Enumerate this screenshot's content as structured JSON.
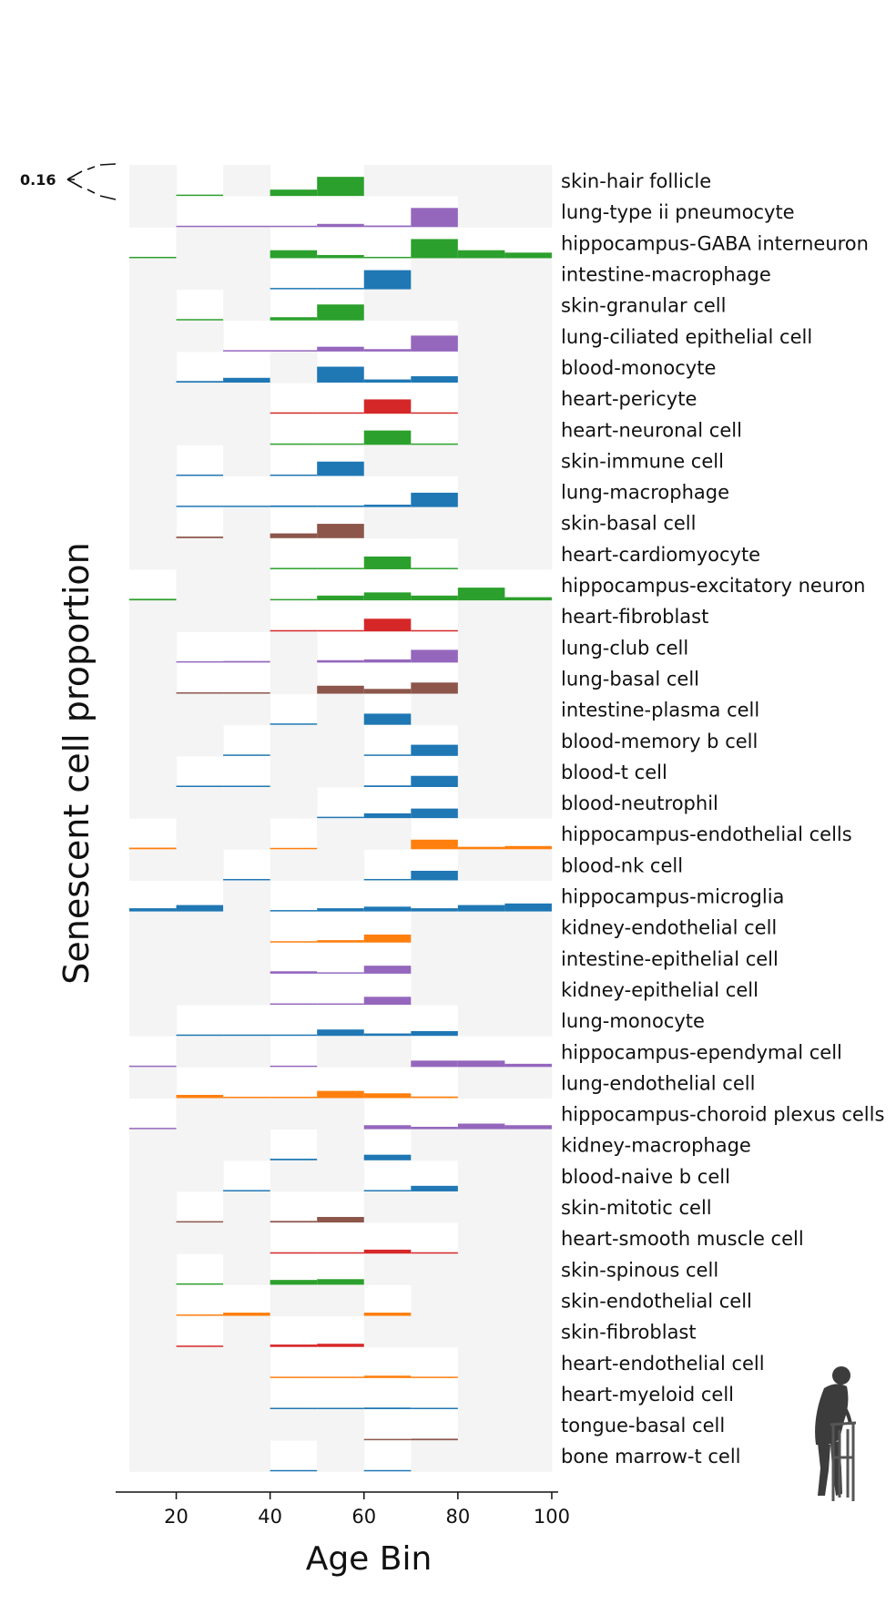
{
  "chart_data": {
    "type": "ridgeline-histogram",
    "xlabel": "Age Bin",
    "ylabel": "Senescent cell proportion",
    "xlim": [
      10,
      100
    ],
    "xticks": [
      20,
      40,
      60,
      80,
      100
    ],
    "bins": [
      10,
      20,
      30,
      40,
      50,
      60,
      70,
      80,
      90
    ],
    "bin_width": 10,
    "scale_label": "0.16",
    "scale_value": 0.16,
    "colors": {
      "green": "#2ca02c",
      "purple": "#9467bd",
      "blue": "#1f77b4",
      "red": "#d62728",
      "brown": "#8c564b",
      "orange": "#ff7f0e",
      "missing_bin": "#f4f4f4"
    },
    "series": [
      {
        "name": "skin-hair follicle",
        "color": "green",
        "values": [
          null,
          0.003,
          null,
          0.04,
          0.12,
          null,
          null,
          null,
          null
        ]
      },
      {
        "name": "lung-type ii pneumocyte",
        "color": "purple",
        "values": [
          null,
          0.003,
          0.005,
          0.007,
          0.02,
          0.01,
          0.12,
          null,
          null
        ]
      },
      {
        "name": "hippocampus-GABA interneuron",
        "color": "green",
        "values": [
          0.003,
          null,
          null,
          0.05,
          0.02,
          0.005,
          0.12,
          0.05,
          0.035
        ]
      },
      {
        "name": "intestine-macrophage",
        "color": "blue",
        "values": [
          null,
          null,
          null,
          0.003,
          0.003,
          0.12,
          null,
          null,
          null
        ]
      },
      {
        "name": "skin-granular cell",
        "color": "green",
        "values": [
          null,
          0.008,
          null,
          0.02,
          0.1,
          null,
          null,
          null,
          null
        ]
      },
      {
        "name": "lung-ciliated epithelial cell",
        "color": "purple",
        "values": [
          null,
          null,
          0.005,
          0.005,
          0.03,
          0.015,
          0.1,
          null,
          null
        ]
      },
      {
        "name": "blood-monocyte",
        "color": "blue",
        "values": [
          null,
          0.01,
          0.03,
          null,
          0.1,
          0.02,
          0.04,
          null,
          null
        ]
      },
      {
        "name": "heart-pericyte",
        "color": "red",
        "values": [
          null,
          null,
          null,
          0.003,
          0.005,
          0.09,
          0.003,
          null,
          null
        ]
      },
      {
        "name": "heart-neuronal cell",
        "color": "green",
        "values": [
          null,
          null,
          null,
          0.003,
          0.003,
          0.09,
          0.003,
          null,
          null
        ]
      },
      {
        "name": "skin-immune cell",
        "color": "blue",
        "values": [
          null,
          0.003,
          null,
          0.005,
          0.09,
          null,
          null,
          null,
          null
        ]
      },
      {
        "name": "lung-macrophage",
        "color": "blue",
        "values": [
          null,
          0.003,
          0.005,
          0.01,
          0.01,
          0.015,
          0.09,
          null,
          null
        ]
      },
      {
        "name": "skin-basal cell",
        "color": "brown",
        "values": [
          null,
          0.01,
          null,
          0.03,
          0.09,
          null,
          null,
          null,
          null
        ]
      },
      {
        "name": "heart-cardiomyocyte",
        "color": "green",
        "values": [
          null,
          null,
          null,
          0.003,
          0.003,
          0.08,
          0.003,
          null,
          null
        ]
      },
      {
        "name": "hippocampus-excitatory neuron",
        "color": "green",
        "values": [
          0.01,
          null,
          null,
          0.003,
          0.03,
          0.05,
          0.03,
          0.08,
          0.02
        ]
      },
      {
        "name": "heart-fibroblast",
        "color": "red",
        "values": [
          null,
          null,
          null,
          0.003,
          0.005,
          0.08,
          0.003,
          null,
          null
        ]
      },
      {
        "name": "lung-club cell",
        "color": "purple",
        "values": [
          null,
          0.003,
          0.01,
          null,
          0.015,
          0.02,
          0.08,
          null,
          null
        ]
      },
      {
        "name": "lung-basal cell",
        "color": "brown",
        "values": [
          null,
          0.005,
          0.003,
          null,
          0.05,
          0.03,
          0.07,
          null,
          null
        ]
      },
      {
        "name": "intestine-plasma cell",
        "color": "blue",
        "values": [
          null,
          null,
          null,
          0.003,
          null,
          0.07,
          null,
          null,
          null
        ]
      },
      {
        "name": "blood-memory b cell",
        "color": "blue",
        "values": [
          null,
          null,
          0.003,
          null,
          null,
          0.005,
          0.07,
          null,
          null
        ]
      },
      {
        "name": "blood-t cell",
        "color": "blue",
        "values": [
          null,
          0.005,
          0.008,
          null,
          null,
          0.01,
          0.07,
          null,
          null
        ]
      },
      {
        "name": "blood-neutrophil",
        "color": "blue",
        "values": [
          null,
          null,
          null,
          null,
          0.003,
          0.03,
          0.06,
          null,
          null
        ]
      },
      {
        "name": "hippocampus-endothelial cells",
        "color": "orange",
        "values": [
          0.01,
          null,
          null,
          0.005,
          null,
          null,
          0.06,
          0.015,
          0.02
        ]
      },
      {
        "name": "blood-nk cell",
        "color": "blue",
        "values": [
          null,
          null,
          0.003,
          null,
          null,
          0.005,
          0.06,
          null,
          null
        ]
      },
      {
        "name": "hippocampus-microglia",
        "color": "blue",
        "values": [
          0.02,
          0.04,
          null,
          0.005,
          0.02,
          0.03,
          0.02,
          0.04,
          0.05
        ]
      },
      {
        "name": "kidney-endothelial cell",
        "color": "orange",
        "values": [
          null,
          null,
          null,
          0.008,
          0.015,
          0.05,
          null,
          null,
          null
        ]
      },
      {
        "name": "intestine-epithelial cell",
        "color": "purple",
        "values": [
          null,
          null,
          null,
          0.015,
          0.003,
          0.05,
          null,
          null,
          null
        ]
      },
      {
        "name": "kidney-epithelial cell",
        "color": "purple",
        "values": [
          null,
          null,
          null,
          0.003,
          0.005,
          0.05,
          null,
          null,
          null
        ]
      },
      {
        "name": "lung-monocyte",
        "color": "blue",
        "values": [
          null,
          0.003,
          0.003,
          0.003,
          0.04,
          0.015,
          0.03,
          null,
          null
        ]
      },
      {
        "name": "hippocampus-ependymal cell",
        "color": "purple",
        "values": [
          0.003,
          null,
          null,
          0.003,
          null,
          null,
          0.04,
          0.04,
          0.02
        ]
      },
      {
        "name": "lung-endothelial cell",
        "color": "orange",
        "values": [
          null,
          0.02,
          0.003,
          0.003,
          0.045,
          0.03,
          0.01,
          null,
          null
        ]
      },
      {
        "name": "hippocampus-choroid plexus cells",
        "color": "purple",
        "values": [
          0.003,
          null,
          null,
          null,
          null,
          0.025,
          0.015,
          0.035,
          0.025
        ]
      },
      {
        "name": "kidney-macrophage",
        "color": "blue",
        "values": [
          null,
          null,
          null,
          0.01,
          null,
          0.035,
          null,
          null,
          null
        ]
      },
      {
        "name": "blood-naive b cell",
        "color": "blue",
        "values": [
          null,
          null,
          0.003,
          null,
          null,
          0.005,
          0.035,
          null,
          null
        ]
      },
      {
        "name": "skin-mitotic cell",
        "color": "brown",
        "values": [
          null,
          0.003,
          null,
          0.01,
          0.035,
          null,
          null,
          null,
          null
        ]
      },
      {
        "name": "heart-smooth muscle cell",
        "color": "red",
        "values": [
          null,
          null,
          null,
          0.003,
          0.005,
          0.025,
          0.003,
          null,
          null
        ]
      },
      {
        "name": "skin-spinous cell",
        "color": "green",
        "values": [
          null,
          0.008,
          null,
          0.03,
          0.035,
          null,
          null,
          null,
          null
        ]
      },
      {
        "name": "skin-endothelial cell",
        "color": "orange",
        "values": [
          null,
          0.005,
          0.02,
          null,
          null,
          0.02,
          null,
          null,
          null
        ]
      },
      {
        "name": "skin-fibroblast",
        "color": "red",
        "values": [
          null,
          0.003,
          null,
          0.015,
          0.02,
          null,
          null,
          null,
          null
        ]
      },
      {
        "name": "heart-endothelial cell",
        "color": "orange",
        "values": [
          null,
          null,
          null,
          0.003,
          0.005,
          0.015,
          0.003,
          null,
          null
        ]
      },
      {
        "name": "heart-myeloid cell",
        "color": "blue",
        "values": [
          null,
          null,
          null,
          0.003,
          0.005,
          0.01,
          0.003,
          null,
          null
        ]
      },
      {
        "name": "tongue-basal cell",
        "color": "brown",
        "values": [
          null,
          null,
          null,
          null,
          null,
          0.005,
          0.01,
          null,
          null
        ]
      },
      {
        "name": "bone marrow-t cell",
        "color": "blue",
        "values": [
          null,
          null,
          null,
          0.005,
          null,
          0.008,
          null,
          null,
          null
        ]
      }
    ]
  }
}
